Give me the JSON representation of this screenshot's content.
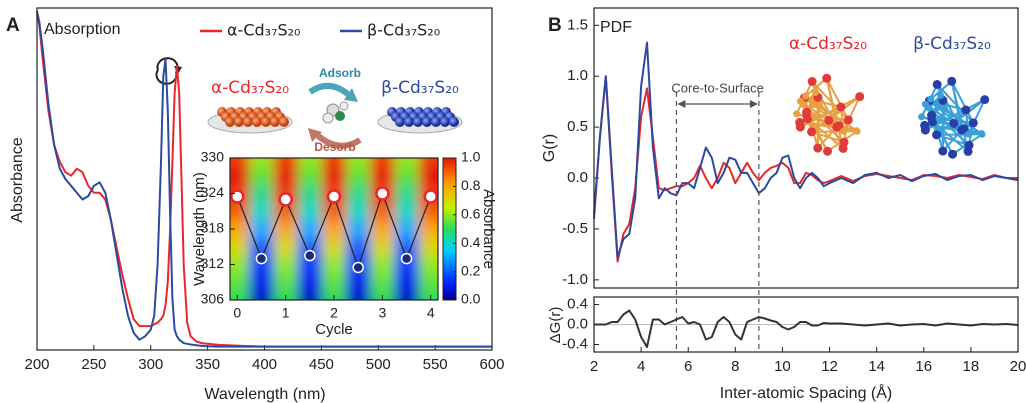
{
  "chart_data": [
    {
      "type": "line",
      "panel_label": "A",
      "title": "Absorption",
      "x_label": "Wavelength (nm)",
      "y_label": "Absorbance",
      "annotations": {
        "alpha": "α-Cd₃₇S₂₀",
        "beta": "β-Cd₃₇S₂₀",
        "adsorb": "Adsorb",
        "desorb": "Desorb"
      },
      "x": [
        200,
        202,
        205,
        210,
        215,
        220,
        225,
        230,
        235,
        240,
        245,
        250,
        255,
        260,
        265,
        270,
        275,
        280,
        285,
        290,
        295,
        300,
        303,
        306,
        309,
        311,
        313,
        315,
        317,
        319,
        321,
        323,
        325,
        327,
        329,
        332,
        335,
        340,
        345,
        350,
        360,
        380,
        400,
        450,
        500,
        550,
        600
      ],
      "series": [
        {
          "name": "α-Cd₃₇S₂₀",
          "color": "#e8262b",
          "values": [
            0.98,
            0.95,
            0.85,
            0.7,
            0.6,
            0.55,
            0.52,
            0.51,
            0.53,
            0.52,
            0.48,
            0.46,
            0.46,
            0.44,
            0.38,
            0.3,
            0.22,
            0.15,
            0.09,
            0.07,
            0.07,
            0.07,
            0.075,
            0.08,
            0.09,
            0.1,
            0.13,
            0.2,
            0.35,
            0.55,
            0.75,
            0.83,
            0.75,
            0.5,
            0.25,
            0.08,
            0.04,
            0.025,
            0.02,
            0.018,
            0.015,
            0.012,
            0.01,
            0.01,
            0.01,
            0.01,
            0.01
          ]
        },
        {
          "name": "β-Cd₃₇S₂₀",
          "color": "#2b4aa0",
          "values": [
            0.99,
            0.96,
            0.88,
            0.72,
            0.6,
            0.53,
            0.5,
            0.48,
            0.46,
            0.44,
            0.45,
            0.48,
            0.49,
            0.46,
            0.38,
            0.28,
            0.18,
            0.1,
            0.05,
            0.03,
            0.04,
            0.06,
            0.1,
            0.25,
            0.55,
            0.8,
            0.85,
            0.7,
            0.4,
            0.15,
            0.06,
            0.04,
            0.03,
            0.025,
            0.02,
            0.018,
            0.016,
            0.014,
            0.012,
            0.011,
            0.01,
            0.01,
            0.01,
            0.01,
            0.01,
            0.01,
            0.01
          ]
        }
      ],
      "xlim": [
        200,
        600
      ],
      "xticks": [
        200,
        250,
        300,
        350,
        400,
        450,
        500,
        550,
        600
      ],
      "ylim": [
        0,
        1
      ],
      "legend": "top"
    },
    {
      "type": "heatmap",
      "x_label": "Cycle",
      "y_label": "Wavelength (nm)",
      "colorbar_label": "Absorbance",
      "x": [
        0,
        0.5,
        1,
        1.5,
        2,
        2.5,
        3,
        3.5,
        4
      ],
      "y": [
        306,
        309,
        312,
        315,
        318,
        321,
        324,
        327,
        330
      ],
      "z": [
        [
          0.5,
          0.05,
          0.5,
          0.05,
          0.5,
          0.05,
          0.5,
          0.05,
          0.5
        ],
        [
          0.55,
          0.1,
          0.55,
          0.1,
          0.55,
          0.1,
          0.55,
          0.1,
          0.55
        ],
        [
          0.6,
          0.15,
          0.6,
          0.15,
          0.6,
          0.15,
          0.6,
          0.15,
          0.6
        ],
        [
          0.7,
          0.2,
          0.7,
          0.2,
          0.7,
          0.2,
          0.7,
          0.2,
          0.7
        ],
        [
          0.8,
          0.3,
          0.8,
          0.3,
          0.8,
          0.3,
          0.8,
          0.3,
          0.8
        ],
        [
          0.9,
          0.4,
          0.9,
          0.4,
          0.9,
          0.4,
          0.9,
          0.4,
          0.9
        ],
        [
          0.95,
          0.45,
          0.95,
          0.45,
          0.95,
          0.45,
          0.95,
          0.45,
          0.95
        ],
        [
          1.0,
          0.55,
          1.0,
          0.55,
          1.0,
          0.55,
          1.0,
          0.55,
          1.0
        ],
        [
          0.95,
          0.6,
          0.95,
          0.6,
          0.95,
          0.6,
          0.95,
          0.6,
          0.95
        ]
      ],
      "markers": {
        "x": [
          0,
          0.5,
          1,
          1.5,
          2,
          2.5,
          3,
          3.5,
          4
        ],
        "y": [
          323.5,
          313,
          323,
          313.5,
          323.5,
          311.5,
          324,
          313,
          323.5
        ],
        "colors": [
          "#e8262b",
          "#1a2a80",
          "#e8262b",
          "#1a2a80",
          "#e8262b",
          "#1a2a80",
          "#e8262b",
          "#1a2a80",
          "#e8262b"
        ]
      },
      "xlim": [
        -0.15,
        4.15
      ],
      "xticks": [
        0,
        1,
        2,
        3,
        4
      ],
      "ylim": [
        306,
        330
      ],
      "yticks": [
        306,
        312,
        318,
        324,
        330
      ],
      "zlim": [
        0,
        1
      ],
      "colorbar_ticks": [
        {
          "value": 0,
          "label": "0.0"
        },
        {
          "value": 0.2,
          "label": "0.2"
        },
        {
          "value": 0.4,
          "label": "0.4"
        },
        {
          "value": 0.6,
          "label": "0.6"
        },
        {
          "value": 0.8,
          "label": "0.8"
        },
        {
          "value": 1,
          "label": "1.0"
        }
      ]
    },
    {
      "type": "line",
      "panel_label": "B",
      "title": "PDF",
      "y_label": "G(r)",
      "annotations": {
        "region": "Core-to-Surface",
        "alpha": "α-Cd₃₇S₂₀",
        "beta": "β-Cd₃₇S₂₀"
      },
      "vlines": [
        5.5,
        9.0
      ],
      "x": [
        2,
        2.25,
        2.5,
        2.75,
        3,
        3.25,
        3.5,
        3.75,
        4,
        4.25,
        4.5,
        4.75,
        5,
        5.25,
        5.5,
        5.75,
        6,
        6.25,
        6.5,
        6.75,
        7,
        7.25,
        7.5,
        7.75,
        8,
        8.25,
        8.5,
        8.75,
        9,
        9.25,
        9.5,
        9.75,
        10,
        10.25,
        10.5,
        10.75,
        11,
        11.25,
        11.5,
        11.75,
        12,
        12.5,
        13,
        13.5,
        14,
        14.5,
        15,
        15.5,
        16,
        16.5,
        17,
        17.5,
        18,
        18.5,
        19,
        19.5,
        20
      ],
      "series": [
        {
          "name": "α-Cd₃₇S₂₀",
          "color": "#e8262b",
          "values": [
            -0.35,
            0.4,
            1.0,
            0.05,
            -0.82,
            -0.55,
            -0.45,
            -0.1,
            0.6,
            0.88,
            0.4,
            -0.1,
            -0.12,
            -0.1,
            -0.08,
            -0.08,
            -0.05,
            0.0,
            0.12,
            0.0,
            -0.1,
            0.0,
            0.15,
            0.1,
            -0.05,
            0.05,
            0.15,
            0.05,
            -0.02,
            0.05,
            0.1,
            0.12,
            0.15,
            0.1,
            -0.05,
            -0.05,
            0.05,
            0.03,
            -0.02,
            -0.05,
            -0.03,
            0.02,
            -0.03,
            0.02,
            0.04,
            0.02,
            0.0,
            -0.02,
            0.03,
            0.02,
            0.0,
            0.03,
            0.01,
            -0.01,
            0.03,
            0.0,
            0.0
          ]
        },
        {
          "name": "β-Cd₃₇S₂₀",
          "color": "#2b4aa0",
          "values": [
            -0.4,
            0.4,
            1.0,
            0.1,
            -0.78,
            -0.6,
            -0.55,
            -0.2,
            0.9,
            1.33,
            0.3,
            -0.2,
            -0.1,
            -0.15,
            -0.17,
            -0.05,
            -0.05,
            -0.1,
            0.1,
            0.3,
            0.2,
            -0.05,
            0.05,
            0.2,
            0.18,
            0.05,
            0.05,
            -0.05,
            -0.15,
            -0.1,
            0.0,
            0.05,
            0.2,
            0.22,
            0.0,
            -0.1,
            0.0,
            0.05,
            0.0,
            -0.08,
            -0.05,
            0.0,
            -0.05,
            0.03,
            0.05,
            0.0,
            0.03,
            -0.03,
            0.02,
            0.04,
            -0.02,
            0.02,
            0.03,
            -0.02,
            0.02,
            0.0,
            -0.02
          ]
        }
      ],
      "xlim": [
        2,
        20
      ],
      "ylim": [
        -1.08,
        1.67
      ],
      "yticks": [
        {
          "value": -1,
          "label": "-1.0"
        },
        {
          "value": -0.5,
          "label": "-0.5"
        },
        {
          "value": 0,
          "label": "0.0"
        },
        {
          "value": 0.5,
          "label": "0.5"
        },
        {
          "value": 1,
          "label": "1.0"
        },
        {
          "value": 1.5,
          "label": "1.5"
        }
      ]
    },
    {
      "type": "line",
      "x_label": "Inter-atomic Spacing (Å)",
      "y_label": "ΔG(r)",
      "zero_line": true,
      "x": [
        2,
        2.25,
        2.5,
        2.75,
        3,
        3.25,
        3.5,
        3.75,
        4,
        4.25,
        4.5,
        4.75,
        5,
        5.25,
        5.5,
        5.75,
        6,
        6.25,
        6.5,
        6.75,
        7,
        7.25,
        7.5,
        7.75,
        8,
        8.25,
        8.5,
        8.75,
        9,
        9.25,
        9.5,
        9.75,
        10,
        10.25,
        10.5,
        10.75,
        11,
        11.25,
        11.5,
        11.75,
        12,
        12.5,
        13,
        13.5,
        14,
        14.5,
        15,
        15.5,
        16,
        16.5,
        17,
        17.5,
        18,
        18.5,
        19,
        19.5,
        20
      ],
      "series": [
        {
          "color": "#333333",
          "values": [
            0.0,
            0.0,
            0.0,
            0.05,
            0.05,
            0.2,
            0.28,
            0.1,
            -0.25,
            -0.45,
            0.1,
            0.1,
            0.0,
            0.05,
            0.1,
            0.15,
            0.02,
            0.05,
            0.0,
            -0.3,
            -0.25,
            0.05,
            0.15,
            0.05,
            -0.2,
            -0.3,
            0.05,
            0.1,
            0.15,
            0.12,
            0.08,
            0.05,
            -0.05,
            -0.1,
            -0.05,
            0.05,
            0.05,
            -0.02,
            -0.02,
            0.03,
            0.02,
            0.02,
            0.0,
            -0.02,
            0.0,
            0.02,
            -0.02,
            0.0,
            0.01,
            -0.02,
            0.02,
            0.0,
            -0.02,
            0.01,
            0.0,
            0.01,
            -0.01
          ]
        }
      ],
      "xlim": [
        2,
        20
      ],
      "xticks": [
        2,
        4,
        6,
        8,
        10,
        12,
        14,
        16,
        18,
        20
      ],
      "ylim": [
        -0.55,
        0.55
      ],
      "yticks": [
        {
          "value": -0.4,
          "label": "-0.4"
        },
        {
          "value": 0,
          "label": "0.0"
        },
        {
          "value": 0.4,
          "label": "0.4"
        }
      ]
    }
  ]
}
